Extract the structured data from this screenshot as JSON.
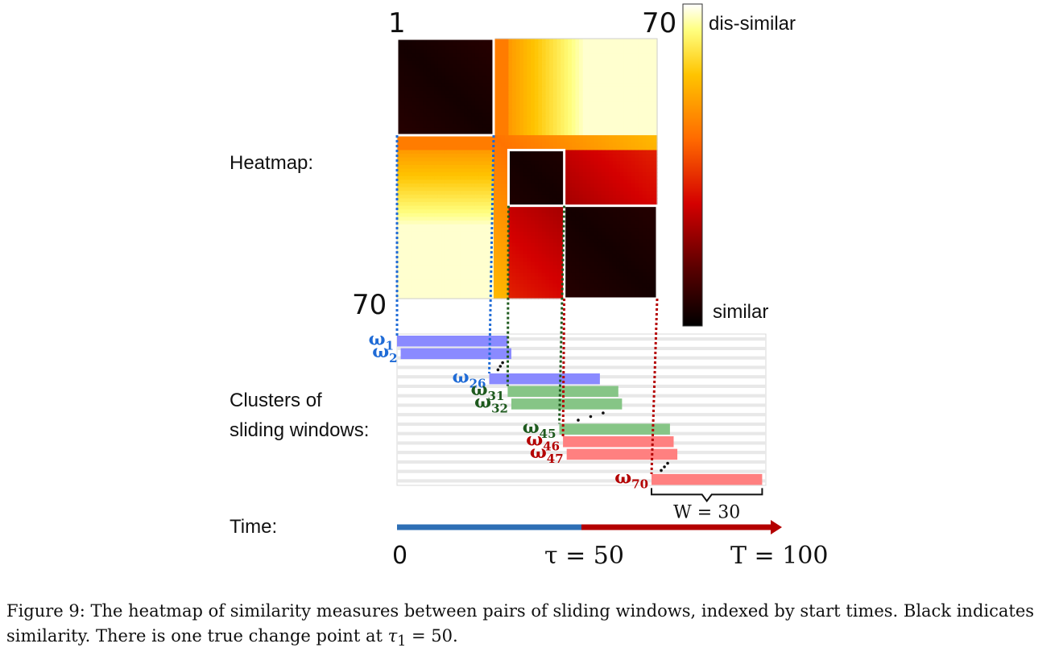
{
  "heatmap": {
    "label": "Heatmap:",
    "index_start_label": "1",
    "index_end_top_label": "70",
    "index_end_left_label": "70",
    "size": 70,
    "clusters": [
      {
        "start": 1,
        "end": 26,
        "color": "#1f6bd6"
      },
      {
        "start": 31,
        "end": 45,
        "color": "#1e5a1e"
      },
      {
        "start": 46,
        "end": 70,
        "color": "#b40000"
      }
    ]
  },
  "colorbar": {
    "top_label": "dis-similar",
    "bottom_label": "similar"
  },
  "windows": {
    "label_line1": "Clusters of",
    "label_line2": "sliding windows:",
    "symbol": "ω",
    "width": 30,
    "width_label": "W = 30",
    "items": [
      {
        "index": 1,
        "sub": "1",
        "color": "#1f6bd6",
        "fill": "#8a8aff"
      },
      {
        "index": 2,
        "sub": "2",
        "color": "#1f6bd6",
        "fill": "#8a8aff"
      },
      {
        "index": 26,
        "sub": "26",
        "color": "#1f6bd6",
        "fill": "#8a8aff"
      },
      {
        "index": 31,
        "sub": "31",
        "color": "#1e5a1e",
        "fill": "#86c586"
      },
      {
        "index": 32,
        "sub": "32",
        "color": "#1e5a1e",
        "fill": "#86c586"
      },
      {
        "index": 45,
        "sub": "45",
        "color": "#1e5a1e",
        "fill": "#86c586"
      },
      {
        "index": 46,
        "sub": "46",
        "color": "#b40000",
        "fill": "#ff8080"
      },
      {
        "index": 47,
        "sub": "47",
        "color": "#b40000",
        "fill": "#ff8080"
      },
      {
        "index": 70,
        "sub": "70",
        "color": "#b40000",
        "fill": "#ff8080"
      }
    ]
  },
  "time": {
    "label": "Time:",
    "start_label": "0",
    "change_label": "τ = 50",
    "end_label": "T = 100",
    "start": 0,
    "change": 50,
    "end": 100,
    "color_before": "#2e6fb5",
    "color_after": "#b40000"
  },
  "caption": {
    "part1": "Figure 9: The heatmap of similarity measures between pairs of sliding windows, indexed by start times. Black indicates similarity. There is one true change point at ",
    "math": "τ",
    "math_sub": "1",
    "part2": " = 50."
  }
}
